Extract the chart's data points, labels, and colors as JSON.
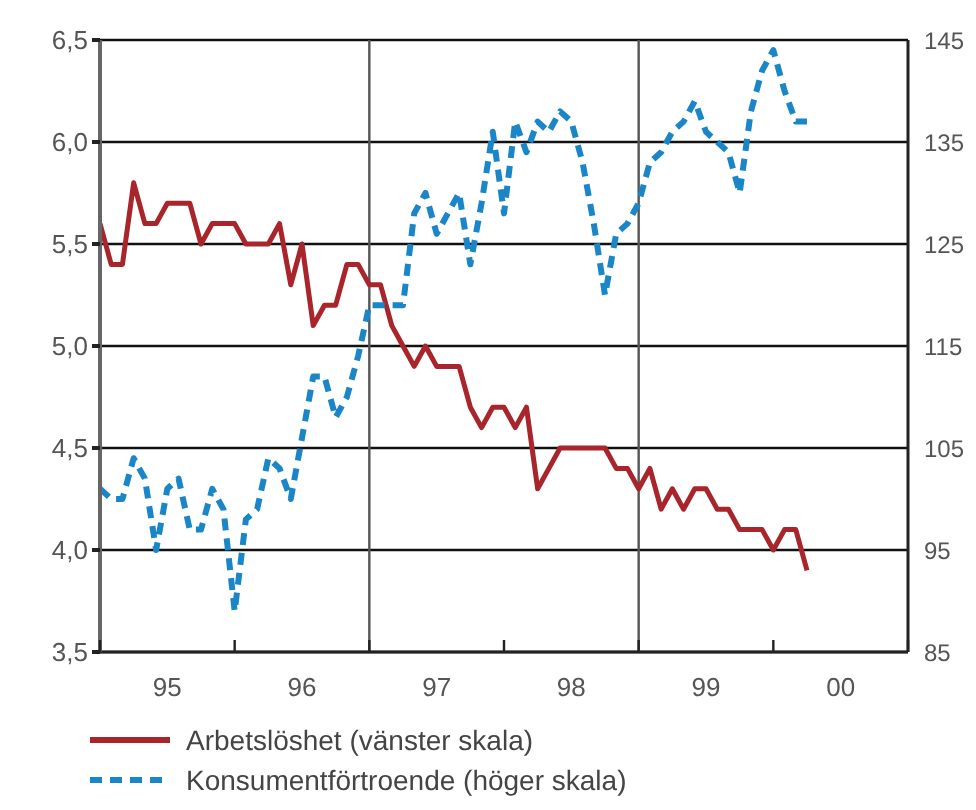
{
  "chart_data": {
    "type": "line",
    "x": [
      "1995-01",
      "1995-02",
      "1995-03",
      "1995-04",
      "1995-05",
      "1995-06",
      "1995-07",
      "1995-08",
      "1995-09",
      "1995-10",
      "1995-11",
      "1995-12",
      "1996-01",
      "1996-02",
      "1996-03",
      "1996-04",
      "1996-05",
      "1996-06",
      "1996-07",
      "1996-08",
      "1996-09",
      "1996-10",
      "1996-11",
      "1996-12",
      "1997-01",
      "1997-02",
      "1997-03",
      "1997-04",
      "1997-05",
      "1997-06",
      "1997-07",
      "1997-08",
      "1997-09",
      "1997-10",
      "1997-11",
      "1997-12",
      "1998-01",
      "1998-02",
      "1998-03",
      "1998-04",
      "1998-05",
      "1998-06",
      "1998-07",
      "1998-08",
      "1998-09",
      "1998-10",
      "1998-11",
      "1998-12",
      "1999-01",
      "1999-02",
      "1999-03",
      "1999-04",
      "1999-05",
      "1999-06",
      "1999-07",
      "1999-08",
      "1999-09",
      "1999-10",
      "1999-11",
      "1999-12",
      "2000-01",
      "2000-02",
      "2000-03",
      "2000-04"
    ],
    "series": [
      {
        "name": "Arbetslöshet (vänster skala)",
        "color": "#a8262b",
        "line_style": "solid",
        "values": [
          5.6,
          5.4,
          5.4,
          5.8,
          5.6,
          5.6,
          5.7,
          5.7,
          5.7,
          5.5,
          5.6,
          5.6,
          5.6,
          5.5,
          5.5,
          5.5,
          5.6,
          5.3,
          5.5,
          5.1,
          5.2,
          5.2,
          5.4,
          5.4,
          5.3,
          5.3,
          5.1,
          5.0,
          4.9,
          5.0,
          4.9,
          4.9,
          4.9,
          4.7,
          4.6,
          4.7,
          4.7,
          4.6,
          4.7,
          4.3,
          4.4,
          4.5,
          4.5,
          4.5,
          4.5,
          4.5,
          4.4,
          4.4,
          4.3,
          4.4,
          4.2,
          4.3,
          4.2,
          4.3,
          4.3,
          4.2,
          4.2,
          4.1,
          4.1,
          4.1,
          4.0,
          4.1,
          4.1,
          3.9
        ]
      },
      {
        "name": "Konsumentförtroende (höger skala)",
        "color": "#1a86c8",
        "line_style": "dashed",
        "axis": "y2",
        "values": [
          101,
          100,
          100,
          104,
          102,
          95,
          101,
          102,
          97,
          97,
          101,
          99,
          89,
          98,
          99,
          104,
          103,
          100,
          106,
          112,
          112,
          108,
          110,
          114,
          119,
          119,
          119,
          119,
          128,
          130,
          126,
          128,
          130,
          123,
          129,
          136,
          128,
          137,
          134,
          137,
          136,
          138,
          137,
          133,
          127,
          120,
          126,
          127,
          129,
          133,
          134,
          136,
          137,
          139,
          136,
          135,
          134,
          130,
          138,
          142,
          144,
          140,
          137,
          137
        ]
      }
    ],
    "xlim": [
      "1995-01",
      "2001-01"
    ],
    "xticks": [
      {
        "value": "1995-01",
        "label": null
      },
      {
        "value": "1995-07",
        "label": "95"
      },
      {
        "value": "1996-01",
        "label": null
      },
      {
        "value": "1996-07",
        "label": "96"
      },
      {
        "value": "1997-01",
        "label": null
      },
      {
        "value": "1997-07",
        "label": "97"
      },
      {
        "value": "1998-01",
        "label": null
      },
      {
        "value": "1998-07",
        "label": "98"
      },
      {
        "value": "1999-01",
        "label": null
      },
      {
        "value": "1999-07",
        "label": "99"
      },
      {
        "value": "2000-01",
        "label": null
      },
      {
        "value": "2000-07",
        "label": "00"
      },
      {
        "value": "2001-01",
        "label": null
      }
    ],
    "ylim": [
      3.5,
      6.5
    ],
    "yticks": [
      {
        "value": 3.5,
        "label": "3,5"
      },
      {
        "value": 4.0,
        "label": "4,0"
      },
      {
        "value": 4.5,
        "label": "4,5"
      },
      {
        "value": 5.0,
        "label": "5,0"
      },
      {
        "value": 5.5,
        "label": "5,5"
      },
      {
        "value": 6.0,
        "label": "6,0"
      },
      {
        "value": 6.5,
        "label": "6,5"
      }
    ],
    "y2lim": [
      85,
      145
    ],
    "y2ticks": [
      85,
      95,
      105,
      115,
      125,
      135,
      145
    ],
    "ref_lines": [
      {
        "axis": "x",
        "value": "1997-01",
        "color": "#555555"
      },
      {
        "axis": "x",
        "value": "1999-01",
        "color": "#555555"
      }
    ],
    "grid": "y",
    "legend": "bottom",
    "marker": "none"
  }
}
